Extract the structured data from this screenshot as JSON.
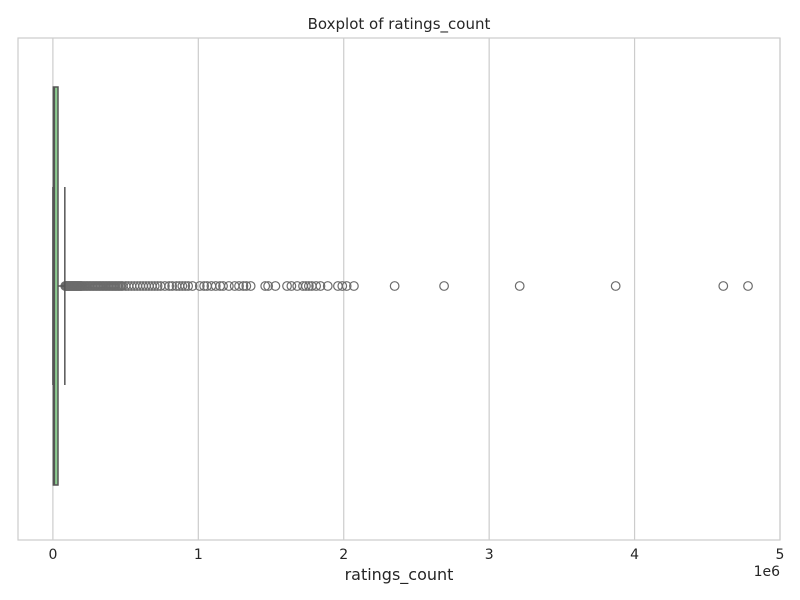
{
  "chart_data": {
    "type": "boxplot",
    "title": "Boxplot of ratings_count",
    "xlabel": "ratings_count",
    "ylabel": "",
    "x_offset_label": "1e6",
    "xlim": [
      -0.24,
      5.0
    ],
    "xticks": [
      0,
      1,
      2,
      3,
      4,
      5
    ],
    "xtick_labels": [
      "0",
      "1",
      "2",
      "3",
      "4",
      "5"
    ],
    "grid": true,
    "box": {
      "q1": 0.003,
      "median": 0.01,
      "q3": 0.035,
      "whisker_low": 0.0,
      "whisker_high": 0.082,
      "fill_color": "#8dcc90",
      "edge_color": "#555555"
    },
    "outliers": [
      0.085,
      0.09,
      0.095,
      0.1,
      0.105,
      0.11,
      0.115,
      0.12,
      0.125,
      0.13,
      0.135,
      0.14,
      0.145,
      0.15,
      0.155,
      0.16,
      0.165,
      0.17,
      0.175,
      0.18,
      0.185,
      0.19,
      0.195,
      0.2,
      0.21,
      0.22,
      0.23,
      0.24,
      0.25,
      0.26,
      0.27,
      0.28,
      0.29,
      0.3,
      0.31,
      0.32,
      0.33,
      0.34,
      0.35,
      0.36,
      0.37,
      0.38,
      0.39,
      0.4,
      0.41,
      0.42,
      0.43,
      0.44,
      0.45,
      0.46,
      0.47,
      0.48,
      0.5,
      0.52,
      0.54,
      0.56,
      0.58,
      0.6,
      0.62,
      0.64,
      0.66,
      0.68,
      0.7,
      0.72,
      0.74,
      0.77,
      0.8,
      0.82,
      0.85,
      0.87,
      0.89,
      0.91,
      0.93,
      0.96,
      1.01,
      1.04,
      1.06,
      1.09,
      1.12,
      1.15,
      1.17,
      1.21,
      1.25,
      1.28,
      1.31,
      1.33,
      1.36,
      1.46,
      1.48,
      1.53,
      1.61,
      1.64,
      1.68,
      1.72,
      1.74,
      1.76,
      1.78,
      1.81,
      1.84,
      1.89,
      1.96,
      1.99,
      2.02,
      2.07,
      2.35,
      2.69,
      3.21,
      3.87,
      4.61,
      4.78
    ],
    "outlier_color": "#6b6b6b"
  },
  "colors": {
    "grid": "#cccccc",
    "frame": "#cccccc",
    "text": "#262626"
  }
}
